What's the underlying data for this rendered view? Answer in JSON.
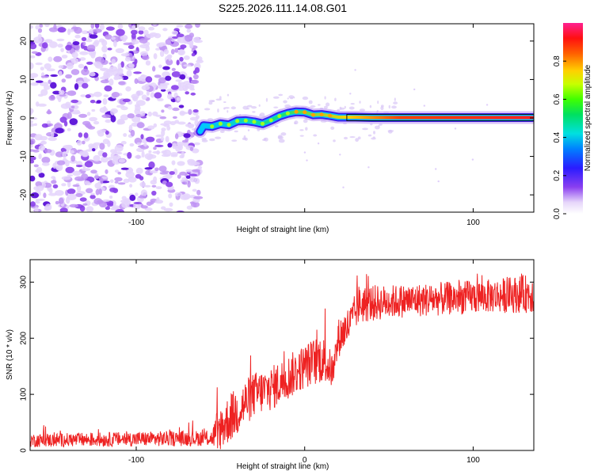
{
  "title": "S225.2026.111.14.08.G01",
  "colors": {
    "snr_line": "#ee2222",
    "scatter_purple": "#7a2fe0",
    "background": "#ffffff",
    "axis": "#000000"
  },
  "chart_data": [
    {
      "type": "heatmap",
      "name": "spectrogram",
      "xlabel": "Height of straight line (km)",
      "ylabel": "Frequency (Hz)",
      "xlim": [
        -163,
        136
      ],
      "ylim": [
        -24.5,
        24.5
      ],
      "xticks": [
        -100,
        0,
        100
      ],
      "xtick_labels": [
        "-100",
        "",
        "100"
      ],
      "yticks": [
        -20,
        -10,
        0,
        10,
        20
      ],
      "ytick_labels": [
        "-20",
        "-10",
        "0",
        "10",
        "20"
      ],
      "noise_region_x": [
        -163,
        -62
      ],
      "track": {
        "x": [
          -62,
          -60,
          -55,
          -50,
          -45,
          -40,
          -35,
          -30,
          -25,
          -20,
          -15,
          -10,
          -5,
          0,
          5,
          10,
          15,
          20,
          30,
          40,
          60,
          80,
          100,
          120,
          135
        ],
        "y": [
          -3.5,
          -2.0,
          -2.2,
          -1.5,
          -1.8,
          -0.8,
          -0.7,
          -1.0,
          -1.5,
          -0.6,
          0.5,
          1.2,
          1.6,
          1.5,
          0.8,
          0.9,
          0.6,
          0.2,
          0.2,
          0.1,
          0.1,
          0.1,
          0.1,
          0.1,
          0.1
        ]
      },
      "colorbar": {
        "label": "Normalized spectral amplitude",
        "range": [
          0.0,
          1.0
        ],
        "ticks": [
          0.0,
          0.2,
          0.4,
          0.6,
          0.8
        ],
        "tick_labels": [
          "0.0",
          "0.2",
          "0.4",
          "0.6",
          "0.8"
        ]
      }
    },
    {
      "type": "line",
      "name": "snr",
      "xlabel": "Height of straight line (km)",
      "ylabel": "SNR (10 * v/v)",
      "xlim": [
        -163,
        136
      ],
      "ylim": [
        0,
        340
      ],
      "xticks": [
        -100,
        0,
        100
      ],
      "xtick_labels": [
        "-100",
        "0",
        "100"
      ],
      "yticks": [
        0,
        100,
        200,
        300
      ],
      "ytick_labels": [
        "0",
        "100",
        "200",
        "300"
      ],
      "envelope": {
        "x": [
          -163,
          -55,
          -52,
          -40,
          -30,
          -20,
          -10,
          0,
          10,
          17,
          20,
          28,
          32,
          50,
          80,
          110,
          136
        ],
        "y": [
          18,
          22,
          35,
          70,
          100,
          110,
          130,
          150,
          165,
          140,
          200,
          230,
          260,
          265,
          270,
          275,
          280
        ],
        "noise": [
          12,
          14,
          40,
          45,
          40,
          40,
          40,
          40,
          45,
          30,
          35,
          35,
          35,
          30,
          30,
          30,
          35
        ]
      }
    }
  ]
}
